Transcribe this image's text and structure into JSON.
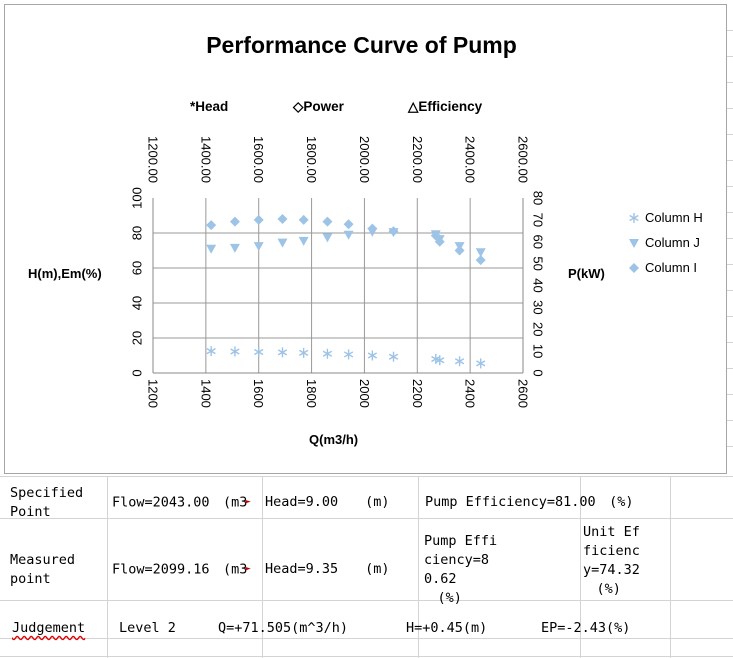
{
  "chart_data": {
    "type": "scatter",
    "title": "Performance Curve of Pump",
    "top_legend": [
      "*Head",
      "◇Power",
      "△Efficiency"
    ],
    "xlabel": "Q(m3/h)",
    "ylabel_left": "H(m),Em(%)",
    "ylabel_right": "P(kW)",
    "x_bottom": {
      "range": [
        1200,
        2600
      ],
      "ticks": [
        "1200",
        "1400",
        "1600",
        "1800",
        "2000",
        "2200",
        "2400",
        "2600"
      ]
    },
    "x_top": {
      "range": [
        1200,
        2600
      ],
      "ticks": [
        "1200.00",
        "1400.00",
        "1600.00",
        "1800.00",
        "2000.00",
        "2200.00",
        "2400.00",
        "2600.00"
      ]
    },
    "y_left": {
      "range": [
        0,
        100
      ],
      "ticks": [
        "0",
        "20",
        "40",
        "60",
        "80",
        "100"
      ]
    },
    "y_right": {
      "range": [
        0,
        80
      ],
      "ticks": [
        "0",
        "10",
        "20",
        "30",
        "40",
        "50",
        "60",
        "70",
        "80"
      ]
    },
    "gridlines": {
      "x": [
        1400,
        1600,
        1800,
        2000,
        2200,
        2400
      ],
      "y_left": [
        20,
        40,
        60,
        80
      ]
    },
    "series": [
      {
        "name": "Column H",
        "marker": "asterisk",
        "color": "#9dc3e6",
        "x": [
          1420,
          1510,
          1600,
          1690,
          1770,
          1860,
          1940,
          2030,
          2110,
          2270,
          2285,
          2360,
          2440
        ],
        "y": [
          12.5,
          12.3,
          12,
          11.8,
          11.5,
          11,
          10.6,
          10,
          9.3,
          8,
          7.3,
          6.7,
          5.5
        ]
      },
      {
        "name": "Column J",
        "marker": "triangle-down",
        "color": "#9dc3e6",
        "x": [
          1420,
          1510,
          1600,
          1690,
          1770,
          1860,
          1940,
          2030,
          2110,
          2270,
          2285,
          2360,
          2440
        ],
        "y": [
          71,
          71.5,
          72.5,
          74.5,
          75.5,
          77.5,
          79,
          80.7,
          80.5,
          79.3,
          76.5,
          72.5,
          69
        ]
      },
      {
        "name": "Column I",
        "marker": "diamond",
        "color": "#9dc3e6",
        "x": [
          1420,
          1510,
          1600,
          1690,
          1770,
          1860,
          1940,
          2030,
          2110,
          2270,
          2285,
          2360,
          2440
        ],
        "y": [
          84.5,
          86.5,
          87.5,
          88,
          87.5,
          86.5,
          85,
          82.5,
          81,
          78.5,
          75,
          70,
          64.5
        ]
      }
    ]
  },
  "table": {
    "specified": {
      "label": "Specified Point",
      "flow": "Flow=2043.00　(m3",
      "head": "Head=9.00　　(m)",
      "efficiency": "Pump Efficiency=81.00　(%)"
    },
    "measured": {
      "label": "Measured point",
      "flow": "Flow=2099.16　(m3",
      "head": "Head=9.35　　(m)",
      "efficiency": "Pump Efficiency=80.62 　(%)",
      "unit_efficiency": "Unit Efficiency=74.32 　(%)"
    },
    "judgement": {
      "label": "Judgement",
      "level": "Level 2",
      "q": "Q=+71.505(m^3/h)",
      "h": "H=+0.45(m)",
      "ep": "EP=-2.43(%)"
    }
  }
}
